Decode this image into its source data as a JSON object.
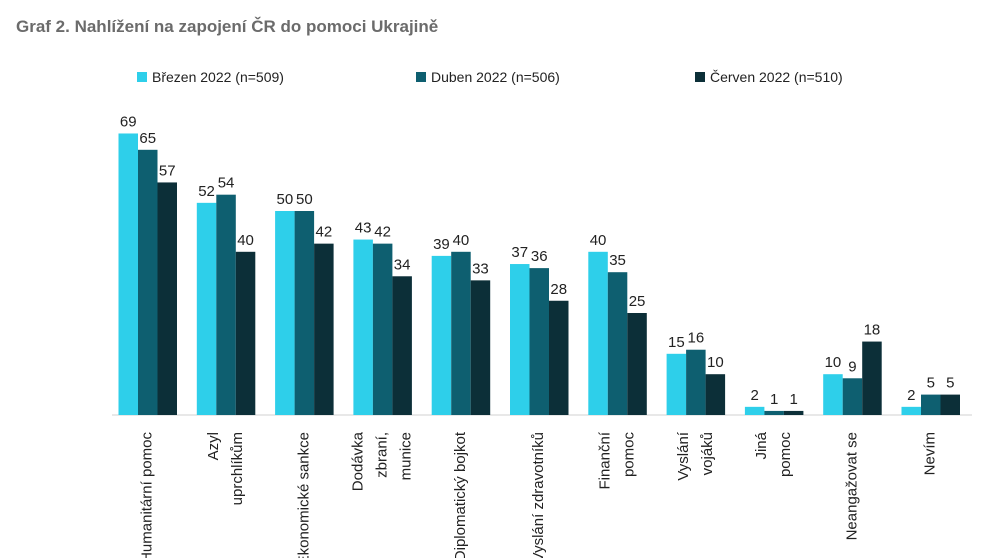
{
  "title": "Graf 2. Nahlížení na zapojení ČR do pomoci Ukrajině",
  "legend": [
    {
      "label": "Březen 2022 (n=509)",
      "color": "#2ecfea"
    },
    {
      "label": "Duben 2022 (n=506)",
      "color": "#0e5f70"
    },
    {
      "label": "Červen 2022 (n=510)",
      "color": "#0c2f38"
    }
  ],
  "chart_data": {
    "type": "bar",
    "title": "Graf 2. Nahlížení na zapojení ČR do pomoci Ukrajině",
    "ylim": [
      0,
      72
    ],
    "grid": false,
    "legend_position": "top",
    "categories": [
      [
        "Humanitární pomoc"
      ],
      [
        "Azyl",
        "uprchlíkům"
      ],
      [
        "Ekonomické sankce"
      ],
      [
        "Dodávka",
        "zbraní,",
        "munice"
      ],
      [
        "Diplomatický bojkot"
      ],
      [
        "Vyslání zdravotníků"
      ],
      [
        "Finanční",
        "pomoc"
      ],
      [
        "Vyslání",
        "vojáků"
      ],
      [
        "Jiná",
        "pomoc"
      ],
      [
        "Neangažovat se"
      ],
      [
        "Nevím"
      ]
    ],
    "series": [
      {
        "name": "Březen 2022 (n=509)",
        "color": "#2ecfea",
        "values": [
          69,
          52,
          50,
          43,
          39,
          37,
          40,
          15,
          2,
          10,
          2
        ]
      },
      {
        "name": "Duben 2022 (n=506)",
        "color": "#0e5f70",
        "values": [
          65,
          54,
          50,
          42,
          40,
          36,
          35,
          16,
          1,
          9,
          5
        ]
      },
      {
        "name": "Červen 2022 (n=510)",
        "color": "#0c2f38",
        "values": [
          57,
          40,
          42,
          34,
          33,
          28,
          25,
          10,
          1,
          18,
          5
        ]
      }
    ]
  }
}
